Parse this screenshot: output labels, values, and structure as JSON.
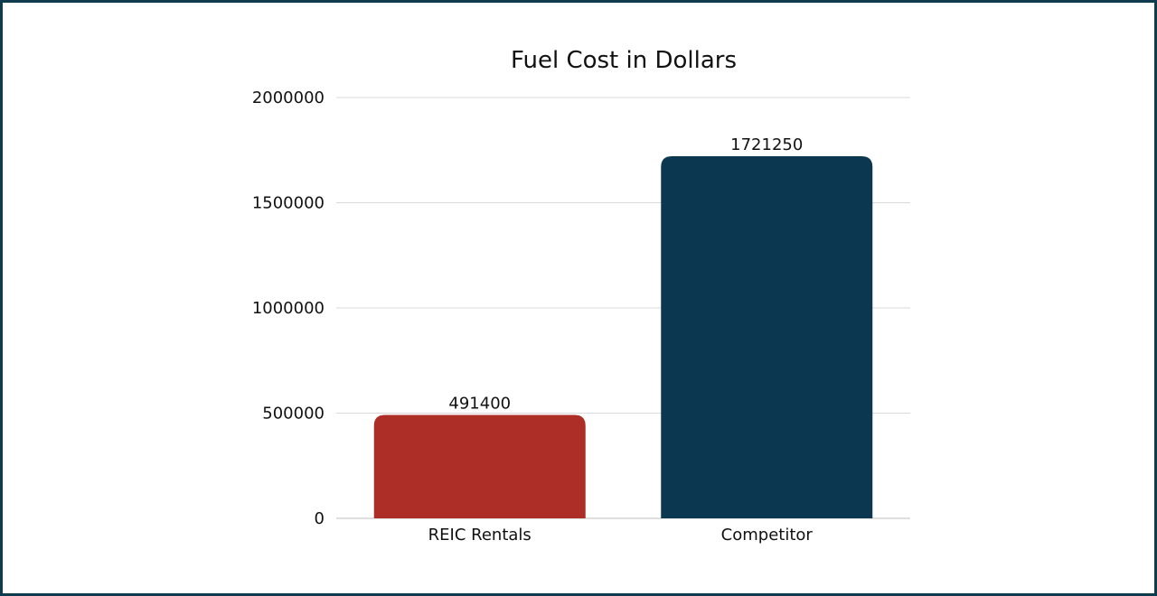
{
  "chart_data": {
    "type": "bar",
    "title": "Fuel Cost in Dollars",
    "xlabel": "",
    "ylabel": "",
    "categories": [
      "REIC Rentals",
      "Competitor"
    ],
    "values": [
      491400,
      1721250
    ],
    "value_labels": [
      "491400",
      "1721250"
    ],
    "bar_colors": [
      "#ad2e26",
      "#0b3850"
    ],
    "ylim": [
      0,
      2000000
    ],
    "yticks": [
      0,
      500000,
      1000000,
      1500000,
      2000000
    ],
    "ytick_labels": [
      "0",
      "500000",
      "1000000",
      "1500000",
      "2000000"
    ],
    "grid": true,
    "legend": "none"
  },
  "colors": {
    "frame_border": "#0f3b4f",
    "gridline": "#d9d9d9",
    "axis_line": "#bfbfbf"
  }
}
